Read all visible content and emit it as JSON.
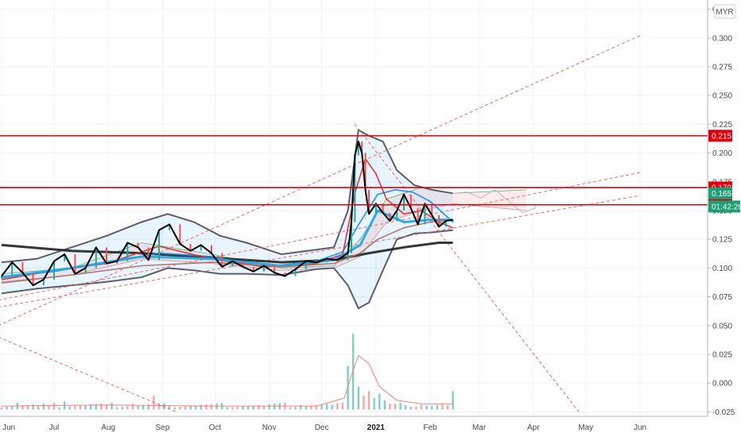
{
  "currency_badge": "MYR",
  "chart_data": {
    "type": "line",
    "y_ticks": [
      "0.325",
      "0.300",
      "0.275",
      "0.250",
      "0.225",
      "0.200",
      "0.175",
      "0.150",
      "0.125",
      "0.100",
      "0.075",
      "0.050",
      "0.025",
      "0.000",
      "-0.025"
    ],
    "y_tick_values": [
      0.325,
      0.3,
      0.275,
      0.25,
      0.225,
      0.2,
      0.175,
      0.15,
      0.125,
      0.1,
      0.075,
      0.05,
      0.025,
      0.0,
      -0.025
    ],
    "ylim": [
      -0.025,
      0.333
    ],
    "x_ticks": [
      {
        "label": "Jun",
        "day": 0
      },
      {
        "label": "Jul",
        "day": 30
      },
      {
        "label": "Aug",
        "day": 61
      },
      {
        "label": "Sep",
        "day": 92
      },
      {
        "label": "Oct",
        "day": 122
      },
      {
        "label": "Nov",
        "day": 153
      },
      {
        "label": "Dec",
        "day": 183
      },
      {
        "label": "2021",
        "day": 214
      },
      {
        "label": "Feb",
        "day": 245
      },
      {
        "label": "Mar",
        "day": 273
      },
      {
        "label": "Apr",
        "day": 304
      },
      {
        "label": "May",
        "day": 334
      },
      {
        "label": "Jun",
        "day": 365
      }
    ],
    "horizontal_levels": [
      {
        "label": "0.215",
        "value": 0.215,
        "color": "#e0000a"
      },
      {
        "label": "0.170",
        "value": 0.17,
        "color": "#e0000a"
      },
      {
        "label": "0.155",
        "value": 0.155,
        "color": "#e0000a"
      }
    ],
    "price_tags": [
      {
        "label": "0.165",
        "value": 0.165,
        "color": "#1e9e72"
      },
      {
        "label": "01:42:26",
        "value": 0.1535,
        "color": "#1e9e72"
      }
    ],
    "close_series": {
      "name": "",
      "days": [
        0,
        6,
        12,
        18,
        24,
        30,
        36,
        42,
        48,
        54,
        60,
        66,
        72,
        78,
        84,
        90,
        96,
        102,
        108,
        114,
        120,
        126,
        132,
        138,
        144,
        150,
        156,
        162,
        168,
        174,
        180,
        186,
        192,
        198,
        200,
        202,
        204,
        206,
        208,
        210,
        214,
        218,
        222,
        226,
        230,
        234,
        238,
        242,
        246,
        250,
        254,
        258
      ],
      "values": [
        0.093,
        0.105,
        0.096,
        0.085,
        0.09,
        0.106,
        0.112,
        0.095,
        0.1,
        0.118,
        0.104,
        0.106,
        0.122,
        0.118,
        0.107,
        0.133,
        0.138,
        0.121,
        0.115,
        0.12,
        0.113,
        0.101,
        0.106,
        0.101,
        0.097,
        0.102,
        0.096,
        0.093,
        0.099,
        0.106,
        0.105,
        0.108,
        0.107,
        0.113,
        0.14,
        0.198,
        0.21,
        0.2,
        0.168,
        0.147,
        0.156,
        0.148,
        0.141,
        0.15,
        0.164,
        0.152,
        0.138,
        0.156,
        0.146,
        0.136,
        0.141,
        0.142
      ]
    },
    "ma_series": [
      {
        "name": "",
        "color": "#2b2b2b",
        "days": [
          0,
          40,
          80,
          120,
          160,
          190,
          210,
          230,
          250,
          258
        ],
        "values": [
          0.12,
          0.115,
          0.113,
          0.109,
          0.105,
          0.107,
          0.113,
          0.118,
          0.122,
          0.122
        ]
      },
      {
        "name": "",
        "color": "#1e88e5",
        "days": [
          0,
          30,
          60,
          90,
          120,
          150,
          180,
          195,
          205,
          215,
          225,
          235,
          245,
          258
        ],
        "values": [
          0.092,
          0.097,
          0.105,
          0.113,
          0.11,
          0.101,
          0.106,
          0.114,
          0.14,
          0.164,
          0.168,
          0.166,
          0.158,
          0.14
        ]
      },
      {
        "name": "",
        "color": "#d32f2f",
        "days": [
          0,
          30,
          60,
          90,
          120,
          150,
          180,
          195,
          202,
          208,
          214,
          220,
          230,
          240,
          250,
          258
        ],
        "values": [
          0.09,
          0.098,
          0.104,
          0.119,
          0.108,
          0.101,
          0.104,
          0.112,
          0.165,
          0.195,
          0.182,
          0.16,
          0.147,
          0.15,
          0.14,
          0.135
        ]
      },
      {
        "name": "",
        "color": "#29a8e0",
        "days": [
          0,
          40,
          80,
          120,
          160,
          190,
          205,
          215,
          230,
          245,
          258
        ],
        "values": [
          0.092,
          0.1,
          0.11,
          0.108,
          0.102,
          0.107,
          0.12,
          0.15,
          0.14,
          0.142,
          0.142
        ]
      },
      {
        "name": "",
        "color": "#b0706a",
        "days": [
          0,
          40,
          80,
          120,
          160,
          190,
          205,
          215,
          230,
          245,
          258
        ],
        "values": [
          0.087,
          0.094,
          0.102,
          0.105,
          0.101,
          0.104,
          0.113,
          0.125,
          0.135,
          0.14,
          0.142
        ]
      }
    ],
    "bollinger": {
      "days": [
        0,
        20,
        40,
        60,
        80,
        95,
        110,
        125,
        140,
        160,
        180,
        190,
        198,
        204,
        210,
        218,
        226,
        236,
        246,
        258
      ],
      "upper": [
        0.105,
        0.108,
        0.118,
        0.128,
        0.14,
        0.147,
        0.14,
        0.128,
        0.122,
        0.112,
        0.116,
        0.118,
        0.15,
        0.22,
        0.215,
        0.21,
        0.185,
        0.172,
        0.168,
        0.165
      ],
      "lower": [
        0.078,
        0.082,
        0.085,
        0.088,
        0.092,
        0.1,
        0.098,
        0.095,
        0.095,
        0.094,
        0.099,
        0.1,
        0.085,
        0.065,
        0.07,
        0.098,
        0.125,
        0.13,
        0.131,
        0.133
      ]
    },
    "volume": {
      "days": [
        0,
        10,
        20,
        28,
        35,
        45,
        60,
        75,
        88,
        95,
        110,
        130,
        150,
        170,
        188,
        196,
        199,
        201,
        203,
        205,
        207,
        209,
        212,
        216,
        220,
        226,
        232,
        240,
        246,
        250,
        254,
        258
      ],
      "values": [
        0.002,
        0.006,
        0.003,
        0.003,
        0.007,
        0.004,
        0.004,
        0.005,
        0.012,
        0.004,
        0.003,
        0.002,
        0.003,
        0.004,
        0.004,
        0.006,
        0.038,
        0.066,
        0.028,
        0.02,
        0.012,
        0.016,
        0.01,
        0.014,
        0.008,
        0.005,
        0.004,
        0.004,
        0.003,
        0.004,
        0.004,
        0.016
      ]
    },
    "trendlines": [
      {
        "color": "#e06c6c",
        "style": "dashed",
        "points": [
          [
            -2,
            0.05
          ],
          [
            365,
            0.302
          ]
        ]
      },
      {
        "color": "#e06c6c",
        "style": "dashed",
        "points": [
          [
            -2,
            0.072
          ],
          [
            365,
            0.183
          ]
        ]
      },
      {
        "color": "#e06c6c",
        "style": "dashed",
        "points": [
          [
            -2,
            0.066
          ],
          [
            365,
            0.163
          ]
        ]
      },
      {
        "color": "#e06c6c",
        "style": "dashed",
        "points": [
          [
            -2,
            0.04
          ],
          [
            100,
            -0.025
          ]
        ]
      },
      {
        "color": "#e06c6c",
        "style": "dashed",
        "points": [
          [
            202,
            0.225
          ],
          [
            330,
            -0.025
          ]
        ]
      }
    ],
    "forecast": {
      "color": "#b9b9b9",
      "days": [
        258,
        266,
        274,
        282,
        290,
        298,
        306
      ],
      "values": [
        0.165,
        0.166,
        0.161,
        0.168,
        0.158,
        0.148,
        0.153
      ]
    },
    "grid": true
  }
}
